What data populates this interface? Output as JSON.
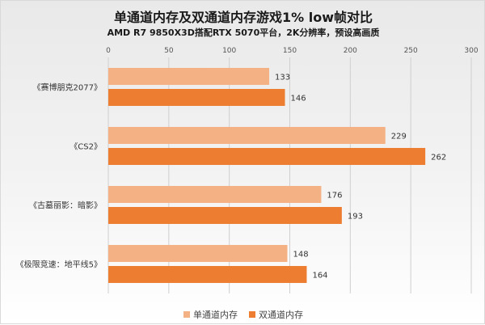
{
  "chart_data": {
    "type": "bar",
    "orientation": "horizontal",
    "title": "单通道内存及双通道内存游戏1% low帧对比",
    "subtitle": "AMD R7 9850X3D搭配RTX 5070平台，2K分辨率，预设高画质",
    "categories": [
      "《赛博朋克2077》",
      "《CS2》",
      "《古墓丽影：暗影》",
      "《极限竞速：地平线5》"
    ],
    "series": [
      {
        "name": "单通道内存",
        "values": [
          133,
          229,
          176,
          148
        ],
        "color": "#f4b183"
      },
      {
        "name": "双通道内存",
        "values": [
          146,
          262,
          193,
          164
        ],
        "color": "#ed7d31"
      }
    ],
    "xlim": [
      0,
      300
    ],
    "xticks": [
      "0",
      "50",
      "100",
      "150",
      "200",
      "250",
      "300"
    ],
    "axis_position": "top",
    "grid": true,
    "legend_position": "bottom"
  }
}
